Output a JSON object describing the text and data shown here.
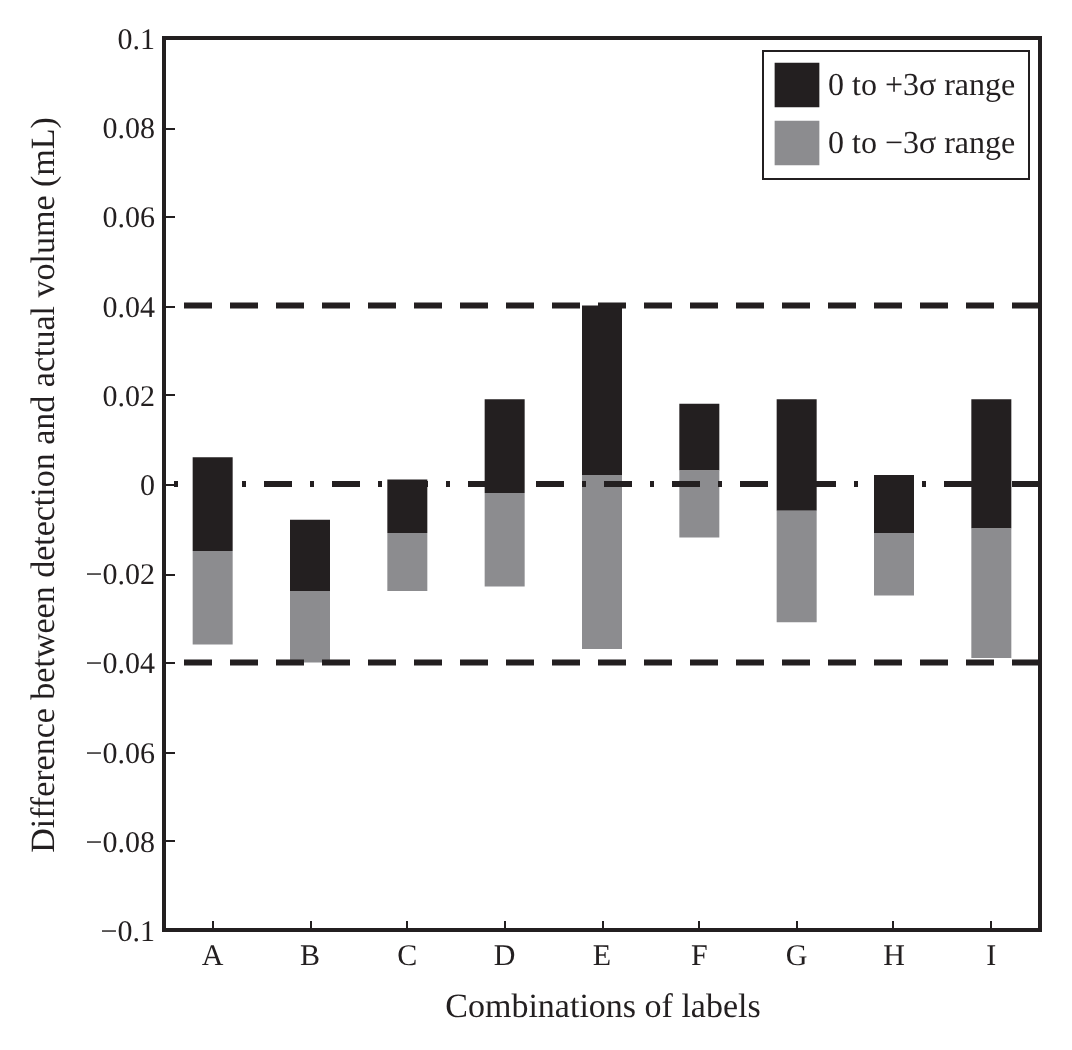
{
  "chart_data": {
    "type": "bar",
    "xlabel": "Combinations of labels",
    "ylabel": "Difference between detection and actual volume (mL)",
    "categories": [
      "A",
      "B",
      "C",
      "D",
      "E",
      "F",
      "G",
      "H",
      "I"
    ],
    "series": [
      {
        "name": "0 to +3σ range",
        "color": "#231f20",
        "base": [
          -0.015,
          -0.024,
          -0.011,
          -0.002,
          0.002,
          0.003,
          -0.006,
          -0.011,
          -0.01
        ],
        "values": [
          0.021,
          0.016,
          0.012,
          0.021,
          0.038,
          0.015,
          0.025,
          0.013,
          0.029
        ]
      },
      {
        "name": "0 to −3σ range",
        "color": "#8c8c8f",
        "base": [
          -0.036,
          -0.04,
          -0.024,
          -0.023,
          -0.037,
          -0.012,
          -0.031,
          -0.025,
          -0.039
        ],
        "values": [
          0.021,
          0.016,
          0.013,
          0.021,
          0.039,
          0.015,
          0.025,
          0.014,
          0.029
        ]
      }
    ],
    "ylim": [
      -0.1,
      0.1
    ],
    "yticks": [
      -0.1,
      -0.08,
      -0.06,
      -0.04,
      -0.02,
      0,
      0.02,
      0.04,
      0.06,
      0.08,
      0.1
    ],
    "ref_lines": [
      {
        "axis": "y",
        "value": 0.04,
        "line_style": "dashed",
        "color": "#231f20"
      },
      {
        "axis": "y",
        "value": -0.04,
        "line_style": "dashed",
        "color": "#231f20"
      },
      {
        "axis": "y",
        "value": 0,
        "line_style": "dashdot",
        "color": "#231f20"
      }
    ],
    "grid": false,
    "legend": "top right"
  }
}
